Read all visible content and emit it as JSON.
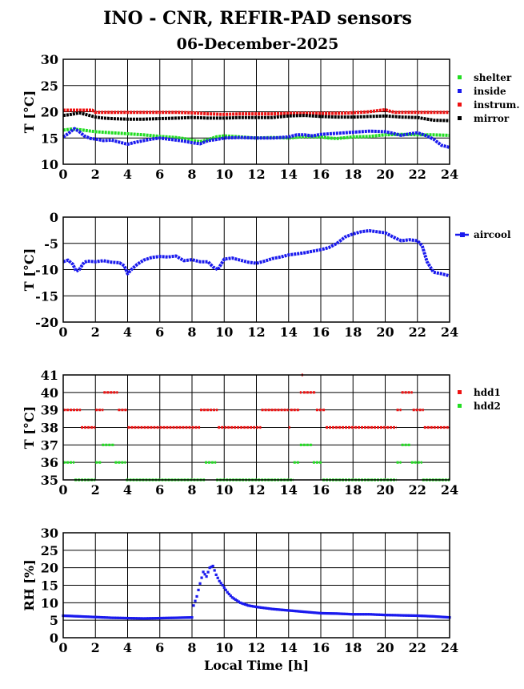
{
  "title": "INO - CNR, REFIR-PAD sensors",
  "subtitle": "06-December-2025",
  "colors": {
    "green": "#22dd22",
    "blue": "#1a1aee",
    "red": "#ee1111",
    "black": "#000000"
  },
  "chart_data": [
    {
      "type": "line",
      "ylabel": "T [°C]",
      "xlabel": "",
      "xlim": [
        0,
        24
      ],
      "ylim": [
        10,
        30
      ],
      "xticks": [
        "0",
        "2",
        "4",
        "6",
        "8",
        "10",
        "12",
        "14",
        "16",
        "18",
        "20",
        "22",
        "24"
      ],
      "yticks": [
        "10",
        "15",
        "20",
        "25",
        "30"
      ],
      "series": [
        {
          "name": "shelter",
          "color": "#22dd22",
          "x": [
            0,
            0.5,
            1,
            1.5,
            2,
            3,
            4,
            5,
            6,
            7,
            7.5,
            8,
            8.5,
            9,
            9.5,
            10,
            11,
            12,
            13,
            14,
            15,
            16,
            16.5,
            17,
            18,
            19,
            20,
            21,
            22,
            23,
            24
          ],
          "y": [
            16.5,
            16.7,
            16.6,
            16.4,
            16.2,
            16.0,
            15.8,
            15.6,
            15.3,
            15.1,
            14.9,
            14.6,
            14.3,
            14.7,
            15.2,
            15.4,
            15.2,
            15.0,
            15.1,
            15.0,
            15.3,
            15.2,
            15.0,
            14.9,
            15.2,
            15.3,
            15.6,
            15.7,
            15.6,
            15.6,
            15.5
          ]
        },
        {
          "name": "inside",
          "color": "#1a1aee",
          "x": [
            0,
            0.3,
            0.7,
            1,
            1.3,
            1.7,
            2,
            2.5,
            3,
            3.5,
            4,
            4.5,
            5,
            5.5,
            6,
            6.5,
            7,
            7.5,
            8,
            8.5,
            9,
            9.5,
            10,
            11,
            12,
            13,
            14,
            14.5,
            15,
            15.5,
            16,
            17,
            18,
            19,
            20,
            20.5,
            21,
            21.5,
            22,
            22.5,
            23,
            23.5,
            24
          ],
          "y": [
            15.2,
            15.8,
            16.8,
            16.2,
            15.4,
            14.9,
            14.8,
            14.5,
            14.6,
            14.2,
            13.8,
            14.2,
            14.5,
            14.8,
            15.0,
            14.8,
            14.6,
            14.4,
            14.1,
            13.9,
            14.5,
            14.7,
            15.0,
            15.1,
            15.0,
            15.0,
            15.2,
            15.6,
            15.6,
            15.4,
            15.7,
            15.9,
            16.1,
            16.3,
            16.2,
            15.9,
            15.5,
            15.8,
            16.0,
            15.5,
            14.8,
            13.6,
            13.2
          ]
        },
        {
          "name": "instrum.",
          "color": "#ee1111",
          "x": [
            0,
            1,
            1.8,
            2,
            3,
            4,
            5,
            6,
            7,
            8,
            9,
            10,
            11,
            12,
            13,
            14,
            15,
            16,
            17,
            18,
            19,
            19.5,
            20,
            20.3,
            20.6,
            21,
            22,
            23,
            24
          ],
          "y": [
            20.3,
            20.3,
            20.3,
            19.9,
            19.9,
            19.9,
            19.9,
            19.9,
            19.9,
            19.8,
            19.6,
            19.5,
            19.6,
            19.6,
            19.6,
            19.7,
            19.7,
            19.7,
            19.7,
            19.8,
            20.0,
            20.2,
            20.4,
            20.1,
            19.9,
            19.9,
            19.9,
            19.9,
            19.9
          ]
        },
        {
          "name": "mirror",
          "color": "#000000",
          "x": [
            0,
            0.5,
            1,
            1.5,
            2,
            2.5,
            3,
            4,
            5,
            6,
            7,
            8,
            9,
            10,
            11,
            12,
            13,
            14,
            15,
            16,
            17,
            18,
            19,
            20,
            20.5,
            21,
            22,
            23,
            24
          ],
          "y": [
            19.3,
            19.5,
            19.8,
            19.4,
            19.0,
            18.8,
            18.7,
            18.6,
            18.6,
            18.7,
            18.8,
            18.9,
            18.8,
            18.8,
            18.9,
            18.9,
            18.9,
            19.2,
            19.3,
            19.1,
            19.0,
            19.0,
            19.1,
            19.2,
            19.1,
            19.0,
            18.9,
            18.4,
            18.3
          ]
        }
      ]
    },
    {
      "type": "line",
      "ylabel": "T [°C]",
      "xlabel": "",
      "xlim": [
        0,
        24
      ],
      "ylim": [
        -20,
        0
      ],
      "xticks": [
        "0",
        "2",
        "4",
        "6",
        "8",
        "10",
        "12",
        "14",
        "16",
        "18",
        "20",
        "22",
        "24"
      ],
      "yticks": [
        "-20",
        "-15",
        "-10",
        "-5",
        "0"
      ],
      "series": [
        {
          "name": "aircool",
          "color": "#1a1aee",
          "x": [
            0,
            0.3,
            0.6,
            0.8,
            1,
            1.3,
            1.5,
            2,
            2.5,
            3,
            3.5,
            3.8,
            4,
            4.3,
            4.6,
            5,
            5.5,
            6,
            6.5,
            7,
            7.5,
            8,
            8.5,
            9,
            9.3,
            9.6,
            10,
            10.5,
            11,
            11.5,
            12,
            12.5,
            13,
            13.5,
            14,
            14.5,
            15,
            15.5,
            16,
            16.5,
            17,
            17.5,
            18,
            18.5,
            19,
            19.5,
            20,
            20.5,
            21,
            21.5,
            22,
            22.3,
            22.6,
            23,
            23.5,
            24
          ],
          "y": [
            -8.5,
            -8.2,
            -9.0,
            -10.3,
            -10.0,
            -8.6,
            -8.4,
            -8.5,
            -8.3,
            -8.6,
            -8.7,
            -9.3,
            -10.8,
            -9.8,
            -9.0,
            -8.2,
            -7.7,
            -7.5,
            -7.6,
            -7.4,
            -8.3,
            -8.1,
            -8.5,
            -8.5,
            -9.5,
            -10.0,
            -8.0,
            -7.8,
            -8.2,
            -8.6,
            -8.8,
            -8.4,
            -7.9,
            -7.6,
            -7.2,
            -7.0,
            -6.8,
            -6.5,
            -6.2,
            -5.8,
            -5.0,
            -3.8,
            -3.2,
            -2.8,
            -2.6,
            -2.8,
            -3.0,
            -3.8,
            -4.5,
            -4.3,
            -4.5,
            -5.5,
            -8.5,
            -10.5,
            -10.8,
            -11.2
          ]
        }
      ]
    },
    {
      "type": "scatter",
      "ylabel": "T [°C]",
      "xlabel": "",
      "xlim": [
        0,
        24
      ],
      "ylim": [
        35,
        41
      ],
      "xticks": [
        "0",
        "2",
        "4",
        "6",
        "8",
        "10",
        "12",
        "14",
        "16",
        "18",
        "20",
        "22",
        "24"
      ],
      "yticks": [
        "35",
        "36",
        "37",
        "38",
        "39",
        "40",
        "41"
      ],
      "series": [
        {
          "name": "hdd1",
          "color": "#ee1111",
          "segments": [
            [
              0,
              1.1,
              39
            ],
            [
              1.1,
              2.0,
              38
            ],
            [
              2.0,
              2.5,
              39
            ],
            [
              2.5,
              3.4,
              40
            ],
            [
              3.4,
              4.0,
              39
            ],
            [
              4.0,
              8.5,
              38
            ],
            [
              8.5,
              9.6,
              39
            ],
            [
              9.6,
              12.3,
              38
            ],
            [
              12.3,
              14.0,
              39
            ],
            [
              14.0,
              14.1,
              38
            ],
            [
              14.1,
              14.7,
              39
            ],
            [
              14.7,
              14.8,
              40
            ],
            [
              14.8,
              14.9,
              41
            ],
            [
              14.9,
              15.7,
              40
            ],
            [
              15.7,
              16.3,
              39
            ],
            [
              16.3,
              20.7,
              38
            ],
            [
              20.7,
              21.0,
              39
            ],
            [
              21.0,
              21.7,
              40
            ],
            [
              21.7,
              22.4,
              39
            ],
            [
              22.4,
              24,
              38
            ]
          ]
        },
        {
          "name": "hdd2",
          "color": "#22dd22",
          "segments": [
            [
              0,
              0.7,
              36
            ],
            [
              0.7,
              2.0,
              35
            ],
            [
              2.0,
              2.4,
              36
            ],
            [
              2.4,
              3.2,
              37
            ],
            [
              3.2,
              3.9,
              36
            ],
            [
              3.9,
              8.8,
              35
            ],
            [
              8.8,
              9.5,
              36
            ],
            [
              9.5,
              14.3,
              35
            ],
            [
              14.3,
              14.7,
              36
            ],
            [
              14.7,
              15.5,
              37
            ],
            [
              15.5,
              16.1,
              36
            ],
            [
              16.1,
              20.7,
              35
            ],
            [
              20.7,
              21.0,
              36
            ],
            [
              21.0,
              21.6,
              37
            ],
            [
              21.6,
              22.3,
              36
            ],
            [
              22.3,
              24,
              35
            ]
          ]
        }
      ]
    },
    {
      "type": "scatter",
      "ylabel": "RH [%]",
      "xlabel": "Local Time [h]",
      "xlim": [
        0,
        24
      ],
      "ylim": [
        0,
        30
      ],
      "xticks": [
        "0",
        "2",
        "4",
        "6",
        "8",
        "10",
        "12",
        "14",
        "16",
        "18",
        "20",
        "22",
        "24"
      ],
      "yticks": [
        "0",
        "5",
        "10",
        "15",
        "20",
        "25",
        "30"
      ],
      "series": [
        {
          "name": "RH",
          "color": "#1a1aee",
          "x": [
            0,
            1,
            2,
            3,
            4,
            5,
            6,
            7,
            8,
            8.1,
            8.3,
            8.5,
            8.7,
            8.9,
            9.1,
            9.3,
            9.5,
            9.7,
            9.9,
            10.2,
            10.5,
            11,
            11.5,
            12,
            13,
            14,
            15,
            16,
            17,
            18,
            19,
            20,
            21,
            22,
            23,
            24
          ],
          "y": [
            6.3,
            6.1,
            5.9,
            5.7,
            5.6,
            5.5,
            5.6,
            5.7,
            5.8,
            9.2,
            11.8,
            15.5,
            18.8,
            17.5,
            20.0,
            20.5,
            18.0,
            16.2,
            15.0,
            13.0,
            11.5,
            10.0,
            9.2,
            8.8,
            8.2,
            7.8,
            7.4,
            7.0,
            6.9,
            6.7,
            6.7,
            6.5,
            6.4,
            6.3,
            6.1,
            5.8
          ]
        }
      ]
    }
  ]
}
